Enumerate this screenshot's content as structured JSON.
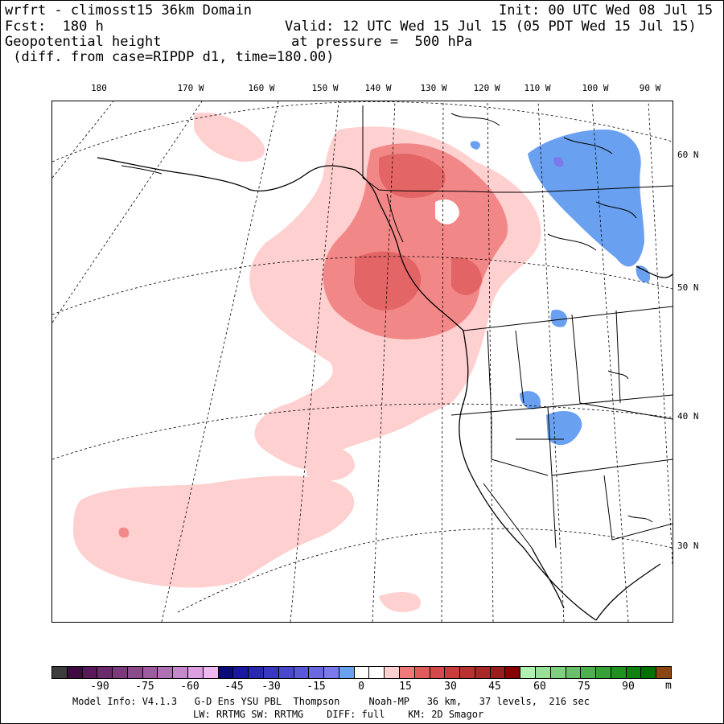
{
  "header": {
    "line1_left": "wrfrt - climosst15 36km Domain",
    "line1_right": "Init: 00 UTC Wed 08 Jul 15",
    "line2_left": "Fcst:  180 h",
    "line2_right": "Valid: 12 UTC Wed 15 Jul 15 (05 PDT Wed 15 Jul 15)",
    "line3_left": "Geopotential height",
    "line3_right": "at pressure =  500 hPa",
    "line4_left": " (diff. from case=RIPDP d1, time=180.00)"
  },
  "map": {
    "lon_labels": [
      "180",
      "170 W",
      "160 W",
      "150 W",
      "140 W",
      "130 W",
      "120 W",
      "110 W",
      "100 W",
      "90 W"
    ],
    "lat_labels": [
      "60 N",
      "50 N",
      "40 N",
      "30 N"
    ]
  },
  "colorbar": {
    "colors": [
      "#3d3d3d",
      "#3f0a3f",
      "#5a1a5a",
      "#6b2a6b",
      "#7b3a7b",
      "#8b4a8b",
      "#9e5ca0",
      "#b070b5",
      "#c688cc",
      "#dc9fe0",
      "#f0b8f0",
      "#0a0a7a",
      "#1818a0",
      "#2828b0",
      "#3838c0",
      "#4848cc",
      "#5858d8",
      "#6a6ae0",
      "#7a7aec",
      "#6aa0f0",
      "#ffffff",
      "#ffffff",
      "#ffd0d0",
      "#f07a7a",
      "#e05c5c",
      "#d44a4a",
      "#c83c3c",
      "#b83232",
      "#a82828",
      "#981e1e",
      "#880000",
      "#b0f0b0",
      "#98e098",
      "#80d080",
      "#68c068",
      "#50b050",
      "#38a038",
      "#209020",
      "#108010",
      "#007000",
      "#8b4513"
    ],
    "ticks": [
      "-90",
      "-75",
      "-60",
      "-45",
      "-30",
      "-15",
      "0",
      "15",
      "30",
      "45",
      "60",
      "75",
      "90"
    ],
    "unit": "m"
  },
  "footer": {
    "line1": "Model Info: V4.1.3   G-D Ens YSU PBL  Thompson     Noah-MP   36 km,   37 levels,  216 sec",
    "line2": "LW: RRTMG SW: RRTMG    DIFF: full    KM: 2D Smagor"
  }
}
